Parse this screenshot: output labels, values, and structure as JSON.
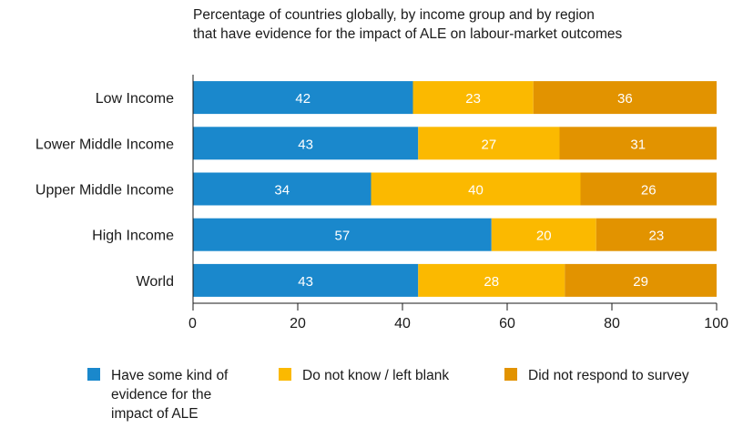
{
  "chart_data": {
    "type": "bar",
    "orientation": "horizontal",
    "stacked": true,
    "title_lines": [
      "Percentage of countries globally, by income group and by region",
      "that have evidence for the impact of ALE on labour-market outcomes"
    ],
    "categories": [
      "Low Income",
      "Lower Middle Income",
      "Upper Middle Income",
      "High Income",
      "World"
    ],
    "series": [
      {
        "name": "Have some kind of evidence for the impact of ALE",
        "legend_lines": [
          "Have some kind of",
          "evidence for the",
          "impact of ALE"
        ],
        "color": "#1a88cc",
        "values": [
          42,
          43,
          34,
          57,
          43
        ]
      },
      {
        "name": "Do not know / left blank",
        "legend_lines": [
          "Do not know / left blank"
        ],
        "color": "#fbb900",
        "values": [
          23,
          27,
          40,
          20,
          28
        ]
      },
      {
        "name": "Did not respond to survey",
        "legend_lines": [
          "Did not respond to survey"
        ],
        "color": "#e29300",
        "values": [
          36,
          31,
          26,
          23,
          29
        ]
      }
    ],
    "xlim": [
      0,
      100
    ],
    "xticks": [
      "0",
      "20",
      "40",
      "60",
      "80",
      "100"
    ],
    "grid": false,
    "legend_position": "bottom"
  }
}
